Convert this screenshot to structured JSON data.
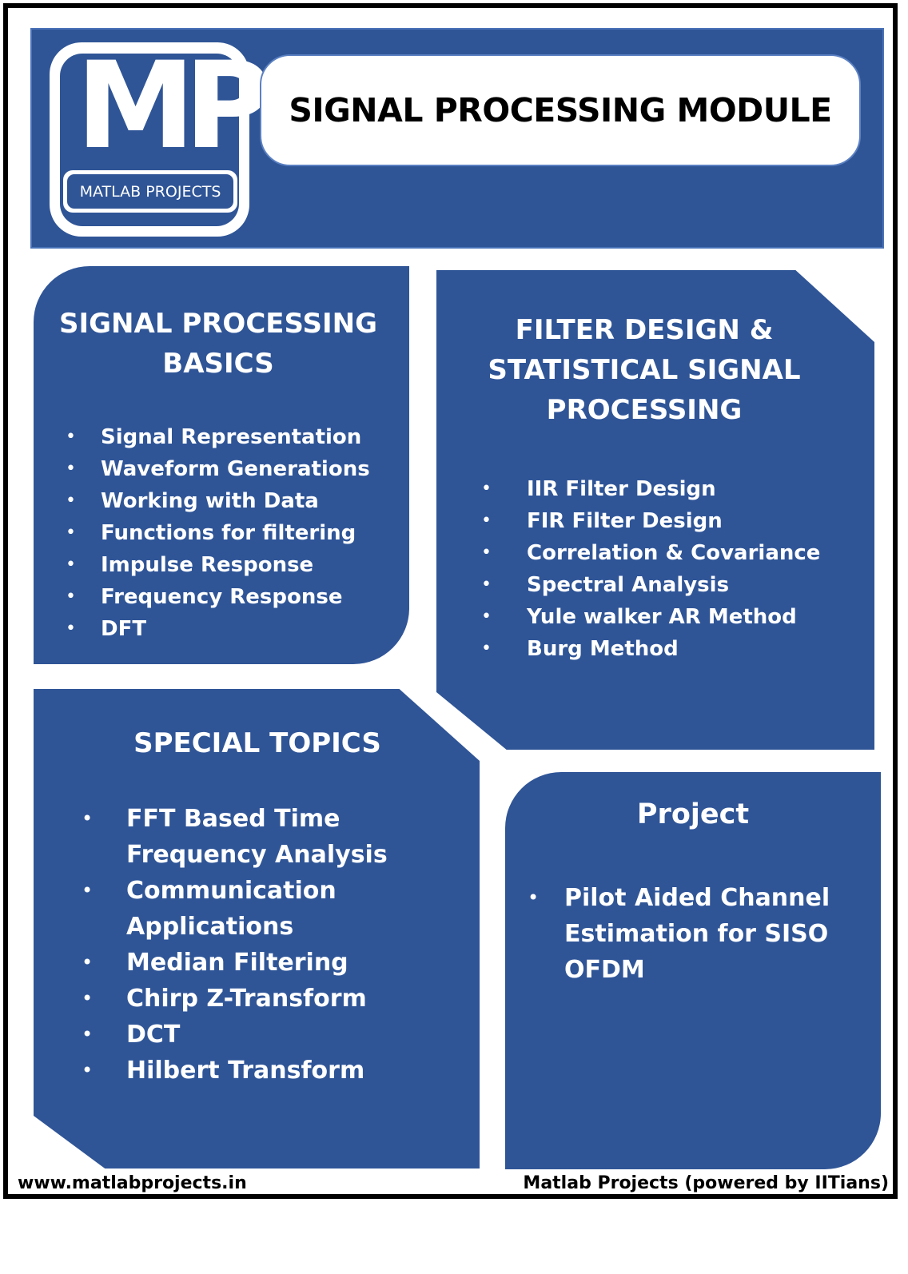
{
  "header": {
    "logo_letters": "MP",
    "logo_tagline": "MATLAB PROJECTS",
    "title": "SIGNAL PROCESSING MODULE"
  },
  "panels": {
    "basics": {
      "title": "SIGNAL PROCESSING\nBASICS",
      "items": [
        "Signal Representation",
        "Waveform Generations",
        "Working with Data",
        "Functions for filtering",
        "Impulse Response",
        "Frequency Response",
        "DFT"
      ]
    },
    "filter": {
      "title": "FILTER DESIGN &\nSTATISTICAL SIGNAL\nPROCESSING",
      "items": [
        "IIR Filter Design",
        "FIR Filter Design",
        "Correlation & Covariance",
        "Spectral Analysis",
        "Yule walker AR Method",
        "Burg Method"
      ]
    },
    "special": {
      "title": "SPECIAL TOPICS",
      "items": [
        "FFT Based Time\nFrequency Analysis",
        "Communication\nApplications",
        "Median Filtering",
        "Chirp Z-Transform",
        "DCT",
        "Hilbert Transform"
      ]
    },
    "project": {
      "title": "Project",
      "items": [
        "Pilot Aided Channel\nEstimation for SISO\nOFDM"
      ]
    }
  },
  "footer": {
    "website": "www.matlabprojects.in",
    "credit": "Matlab Projects (powered by IITians)"
  },
  "colors": {
    "panel_blue": "#2f5597",
    "frame": "#000000"
  }
}
